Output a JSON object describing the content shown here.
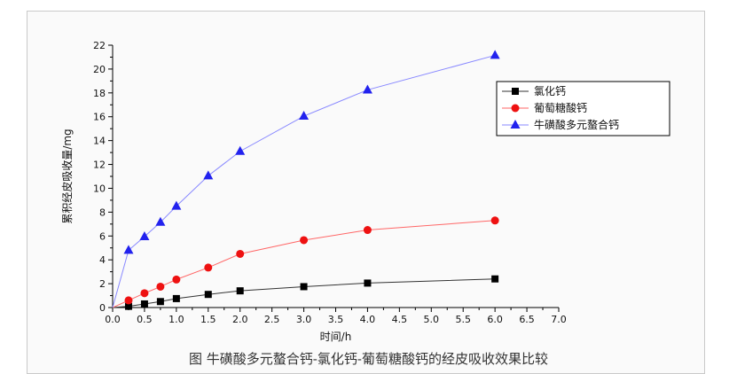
{
  "caption": "图  牛磺酸多元螯合钙-氯化钙-葡萄糖酸钙的经皮吸收效果比较",
  "chart_data": {
    "type": "line",
    "xlabel": "时间/h",
    "ylabel": "累积经皮吸收量/mg",
    "xlim": [
      0,
      7
    ],
    "ylim": [
      0,
      22
    ],
    "xticks": [
      "0.0",
      "0.5",
      "1.0",
      "1.5",
      "2.0",
      "2.5",
      "3.0",
      "3.5",
      "4.0",
      "4.5",
      "5.0",
      "5.5",
      "6.0",
      "6.5",
      "7.0"
    ],
    "yticks": [
      "0",
      "2",
      "4",
      "6",
      "8",
      "10",
      "12",
      "14",
      "16",
      "18",
      "20",
      "22"
    ],
    "grid": false,
    "legend_position": "top-right",
    "series": [
      {
        "name": "氯化钙",
        "marker": "square",
        "color": "#000000",
        "line_color": "#333333",
        "x": [
          0,
          0.25,
          0.5,
          0.75,
          1,
          1.5,
          2,
          3,
          4,
          6
        ],
        "y": [
          0,
          0.1,
          0.3,
          0.5,
          0.75,
          1.1,
          1.4,
          1.75,
          2.05,
          2.4
        ]
      },
      {
        "name": "葡萄糖酸钙",
        "marker": "circle",
        "color": "#ee1111",
        "line_color": "#ff6666",
        "x": [
          0,
          0.25,
          0.5,
          0.75,
          1,
          1.5,
          2,
          3,
          4,
          6
        ],
        "y": [
          0,
          0.6,
          1.2,
          1.75,
          2.35,
          3.35,
          4.5,
          5.65,
          6.5,
          7.3
        ]
      },
      {
        "name": "牛磺酸多元螯合钙",
        "marker": "triangle",
        "color": "#2222ee",
        "line_color": "#8888ff",
        "x": [
          0,
          0.25,
          0.5,
          0.75,
          1,
          1.5,
          2,
          3,
          4,
          6
        ],
        "y": [
          0,
          4.8,
          5.95,
          7.15,
          8.5,
          11.05,
          13.1,
          16.05,
          18.25,
          21.15
        ]
      }
    ]
  }
}
